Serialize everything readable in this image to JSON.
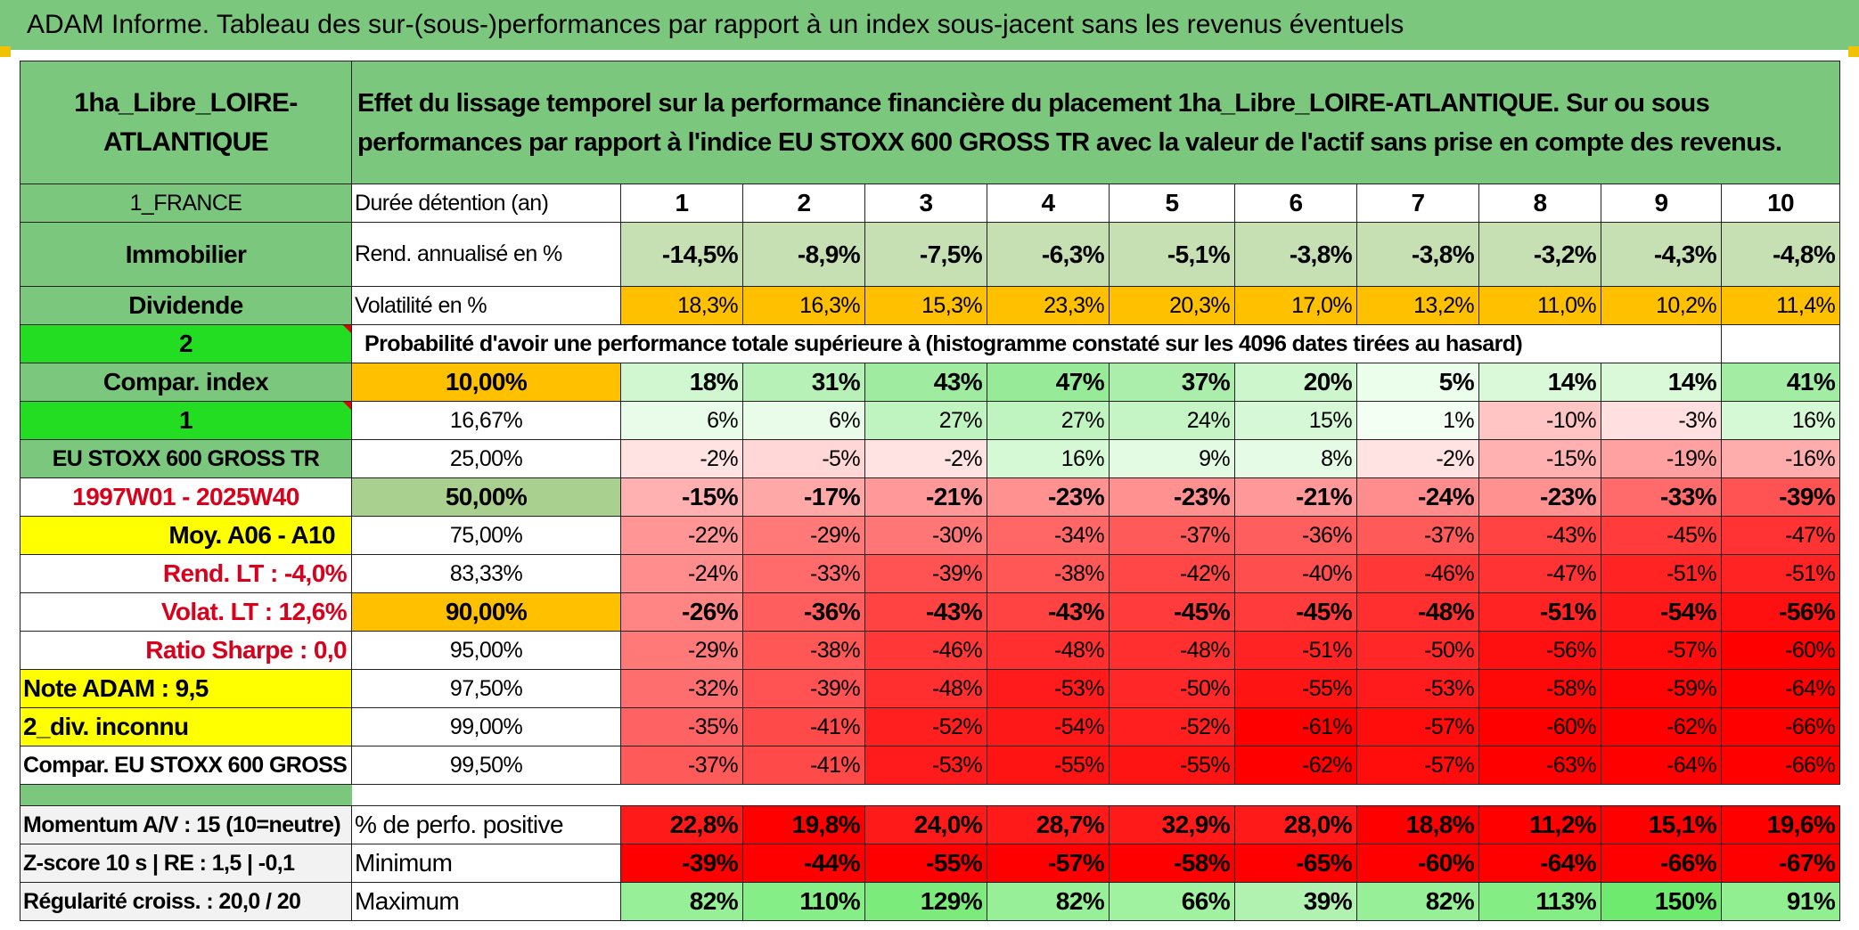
{
  "title": "ADAM Informe. Tableau des sur-(sous-)performances par rapport à un index sous-jacent sans les revenus éventuels",
  "header": {
    "asset_name": "1ha_Libre_LOIRE-ATLANTIQUE",
    "description": "Effet du lissage temporel sur la performance financière du placement 1ha_Libre_LOIRE-ATLANTIQUE. Sur ou sous performances par rapport à l'indice EU STOXX 600 GROSS TR avec la valeur de l'actif sans prise en compte des revenus."
  },
  "left_labels": {
    "country": "1_FRANCE",
    "category": "Immobilier",
    "type": "Dividende",
    "code_2": "2",
    "compar_index": "Compar. index",
    "code_1": "1",
    "index_name": "EU STOXX 600 GROSS TR",
    "period": "1997W01 - 2025W40",
    "moy": "Moy. A06 - A10",
    "rend_lt": "Rend. LT :    -4,0%",
    "volat_lt": "Volat. LT :    12,6%",
    "sharpe": "Ratio Sharpe :    0,0",
    "note": "Note ADAM : 9,5",
    "div": "2_div. inconnu",
    "compar_full": "Compar. EU STOXX 600 GROSS TR",
    "momentum": "Momentum A/V : 15 (10=neutre)",
    "zscore": "Z-score 10 s | RE : 1,5 | -0,1",
    "regularite": "Régularité croiss. : 20,0 / 20"
  },
  "row_labels": {
    "duree": "Durée détention (an)",
    "rend": "Rend. annualisé en %",
    "volat": "Volatilité en %",
    "proba": "Probabilité d'avoir une performance totale supérieure à (histogramme constaté sur les 4096 dates tirées au hasard)",
    "positive": "% de perfo. positive",
    "minimum": "Minimum",
    "maximum": "Maximum"
  },
  "years": [
    "1",
    "2",
    "3",
    "4",
    "5",
    "6",
    "7",
    "8",
    "9",
    "10"
  ],
  "rend": [
    "-14,5%",
    "-8,9%",
    "-7,5%",
    "-6,3%",
    "-5,1%",
    "-3,8%",
    "-3,8%",
    "-3,2%",
    "-4,3%",
    "-4,8%"
  ],
  "volat": [
    "18,3%",
    "16,3%",
    "15,3%",
    "23,3%",
    "20,3%",
    "17,0%",
    "13,2%",
    "11,0%",
    "10,2%",
    "11,4%"
  ],
  "percentile_rows": [
    {
      "label": "10,00%",
      "values": [
        "18%",
        "31%",
        "43%",
        "47%",
        "37%",
        "20%",
        "5%",
        "14%",
        "14%",
        "41%"
      ]
    },
    {
      "label": "16,67%",
      "values": [
        "6%",
        "6%",
        "27%",
        "27%",
        "24%",
        "15%",
        "1%",
        "-10%",
        "-3%",
        "16%"
      ]
    },
    {
      "label": "25,00%",
      "values": [
        "-2%",
        "-5%",
        "-2%",
        "16%",
        "9%",
        "8%",
        "-2%",
        "-15%",
        "-19%",
        "-16%"
      ]
    },
    {
      "label": "50,00%",
      "values": [
        "-15%",
        "-17%",
        "-21%",
        "-23%",
        "-23%",
        "-21%",
        "-24%",
        "-23%",
        "-33%",
        "-39%"
      ]
    },
    {
      "label": "75,00%",
      "values": [
        "-22%",
        "-29%",
        "-30%",
        "-34%",
        "-37%",
        "-36%",
        "-37%",
        "-43%",
        "-45%",
        "-47%"
      ]
    },
    {
      "label": "83,33%",
      "values": [
        "-24%",
        "-33%",
        "-39%",
        "-38%",
        "-42%",
        "-40%",
        "-46%",
        "-47%",
        "-51%",
        "-51%"
      ]
    },
    {
      "label": "90,00%",
      "values": [
        "-26%",
        "-36%",
        "-43%",
        "-43%",
        "-45%",
        "-45%",
        "-48%",
        "-51%",
        "-54%",
        "-56%"
      ]
    },
    {
      "label": "95,00%",
      "values": [
        "-29%",
        "-38%",
        "-46%",
        "-48%",
        "-48%",
        "-51%",
        "-50%",
        "-56%",
        "-57%",
        "-60%"
      ]
    },
    {
      "label": "97,50%",
      "values": [
        "-32%",
        "-39%",
        "-48%",
        "-53%",
        "-50%",
        "-55%",
        "-53%",
        "-58%",
        "-59%",
        "-64%"
      ]
    },
    {
      "label": "99,00%",
      "values": [
        "-35%",
        "-41%",
        "-52%",
        "-54%",
        "-52%",
        "-61%",
        "-57%",
        "-60%",
        "-62%",
        "-66%"
      ]
    },
    {
      "label": "99,50%",
      "values": [
        "-37%",
        "-41%",
        "-53%",
        "-55%",
        "-55%",
        "-62%",
        "-57%",
        "-63%",
        "-64%",
        "-66%"
      ]
    }
  ],
  "positive": [
    "22,8%",
    "19,8%",
    "24,0%",
    "28,7%",
    "32,9%",
    "28,0%",
    "18,8%",
    "11,2%",
    "15,1%",
    "19,6%"
  ],
  "minimum": [
    "-39%",
    "-44%",
    "-55%",
    "-57%",
    "-58%",
    "-65%",
    "-60%",
    "-64%",
    "-66%",
    "-67%"
  ],
  "maximum": [
    "82%",
    "110%",
    "129%",
    "82%",
    "66%",
    "39%",
    "82%",
    "113%",
    "150%",
    "91%"
  ],
  "colors": {
    "header_green": "#7cc77e",
    "lime": "#22dd22",
    "yellow": "#ffff00",
    "orange": "#ffc000",
    "red_text": "#d9001b"
  }
}
